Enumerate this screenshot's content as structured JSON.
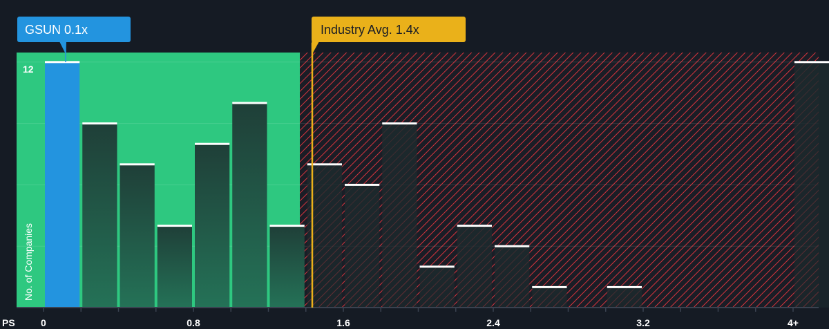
{
  "chart_data": {
    "type": "bar",
    "xlabel": "PS",
    "ylabel": "No. of Companies",
    "x_tick_labels": [
      "0",
      "0.8",
      "1.6",
      "2.4",
      "3.2",
      "4+"
    ],
    "y_tick_labels": [
      "12"
    ],
    "ylim": [
      0,
      12.5
    ],
    "bin_width": 0.2,
    "bins": [
      {
        "start": 0.0,
        "value": 12,
        "highlight": true
      },
      {
        "start": 0.2,
        "value": 9
      },
      {
        "start": 0.4,
        "value": 7
      },
      {
        "start": 0.6,
        "value": 4
      },
      {
        "start": 0.8,
        "value": 8
      },
      {
        "start": 1.0,
        "value": 10
      },
      {
        "start": 1.2,
        "value": 4
      },
      {
        "start": 1.4,
        "value": 7
      },
      {
        "start": 1.6,
        "value": 6
      },
      {
        "start": 1.8,
        "value": 9
      },
      {
        "start": 2.0,
        "value": 2
      },
      {
        "start": 2.2,
        "value": 4
      },
      {
        "start": 2.4,
        "value": 3
      },
      {
        "start": 2.6,
        "value": 1
      },
      {
        "start": 2.8,
        "value": 0
      },
      {
        "start": 3.0,
        "value": 1
      },
      {
        "start": 3.2,
        "value": 0
      },
      {
        "start": 3.4,
        "value": 0
      },
      {
        "start": 3.6,
        "value": 0
      },
      {
        "start": 3.8,
        "value": 0
      },
      {
        "start": 4.0,
        "value": 12,
        "label": "4+"
      }
    ],
    "company": {
      "label": "GSUN 0.1x",
      "value": 0.1
    },
    "industry_avg": {
      "label": "Industry Avg. 1.4x",
      "value": 1.4
    },
    "fair_zone_end": 1.36,
    "grid": true,
    "colors": {
      "background": "#151b24",
      "company": "#2394df",
      "fair_zone": "#2ec880",
      "expensive_hatch": "#e0363f",
      "industry": "#eab11a",
      "bar_dark": "#1f3d36"
    }
  }
}
